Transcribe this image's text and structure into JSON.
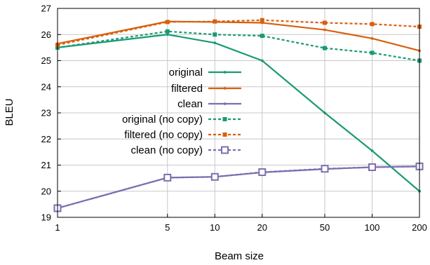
{
  "chart_data": {
    "type": "line",
    "title": "",
    "xlabel": "Beam size",
    "ylabel": "BLEU",
    "x_scale": "log",
    "x": [
      1,
      5,
      10,
      20,
      50,
      100,
      200
    ],
    "xticks": [
      "1",
      "5",
      "10",
      "20",
      "50",
      "100",
      "200"
    ],
    "xlim": [
      1,
      200
    ],
    "ylim": [
      19,
      27
    ],
    "yticks": [
      "19",
      "20",
      "21",
      "22",
      "23",
      "24",
      "25",
      "26",
      "27"
    ],
    "grid": true,
    "legend_position": "center",
    "series": [
      {
        "name": "original",
        "color": "#1a9a74",
        "line": "solid",
        "marker": "small",
        "values": [
          25.5,
          26.0,
          25.68,
          25.0,
          23.0,
          21.55,
          20.0
        ]
      },
      {
        "name": "filtered",
        "color": "#d95f0e",
        "line": "solid",
        "marker": "small",
        "values": [
          25.65,
          26.5,
          26.48,
          26.45,
          26.18,
          25.85,
          25.38
        ]
      },
      {
        "name": "clean",
        "color": "#7b6fb0",
        "line": "solid",
        "marker": "small",
        "values": [
          19.35,
          20.52,
          20.55,
          20.72,
          20.85,
          20.92,
          20.95
        ]
      },
      {
        "name": "original (no copy)",
        "color": "#1a9a74",
        "line": "dotted",
        "marker": "square",
        "values": [
          25.5,
          26.12,
          26.0,
          25.95,
          25.48,
          25.3,
          25.0
        ]
      },
      {
        "name": "filtered (no copy)",
        "color": "#d95f0e",
        "line": "dotted",
        "marker": "square",
        "values": [
          25.6,
          26.48,
          26.5,
          26.55,
          26.45,
          26.4,
          26.3
        ]
      },
      {
        "name": "clean (no copy)",
        "color": "#7b6fb0",
        "line": "dotted",
        "marker": "open-square",
        "values": [
          19.35,
          20.52,
          20.55,
          20.73,
          20.86,
          20.92,
          20.95
        ]
      }
    ]
  }
}
